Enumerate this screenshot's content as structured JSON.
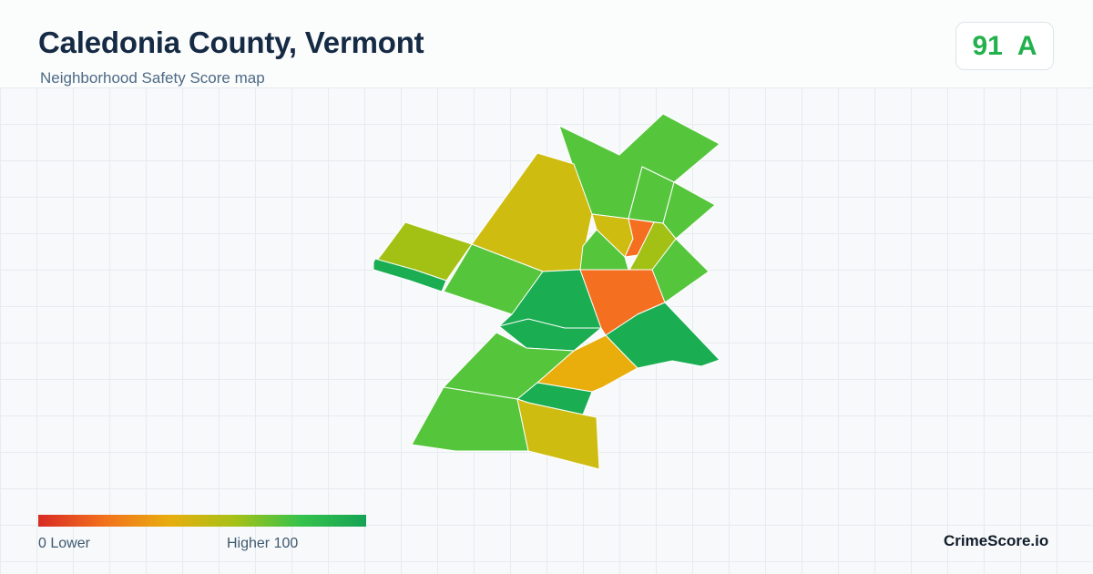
{
  "header": {
    "title": "Caledonia County, Vermont",
    "subtitle": "Neighborhood Safety Score map"
  },
  "score": {
    "value": "91",
    "grade": "A",
    "color": "#22b14c"
  },
  "legend": {
    "low_label": "0  Lower",
    "high_label": "Higher  100",
    "scale_min": 0,
    "scale_max": 100,
    "colors": [
      "#d82a24",
      "#f2711d",
      "#e8ad0f",
      "#a6c117",
      "#35c24b",
      "#15a356"
    ]
  },
  "brand": "CrimeScore.io",
  "map": {
    "regions": [
      {
        "name": "north-east-town",
        "fill": "#55c63c"
      },
      {
        "name": "north-west-town",
        "fill": "#cfbc11"
      },
      {
        "name": "west-town",
        "fill": "#a3c114"
      },
      {
        "name": "west-strip",
        "fill": "#1aad52"
      },
      {
        "name": "east-town-1",
        "fill": "#55c63c"
      },
      {
        "name": "east-town-2",
        "fill": "#55c63c"
      },
      {
        "name": "east-town-3",
        "fill": "#55c63c"
      },
      {
        "name": "central-small-1",
        "fill": "#cfbc11"
      },
      {
        "name": "central-small-2",
        "fill": "#55c63c"
      },
      {
        "name": "central-orange-north",
        "fill": "#f47020"
      },
      {
        "name": "central-yellowgreen",
        "fill": "#a3c114"
      },
      {
        "name": "mid-west-town",
        "fill": "#55c63c"
      },
      {
        "name": "central-west-town",
        "fill": "#1aad52"
      },
      {
        "name": "central-orange",
        "fill": "#f47020"
      },
      {
        "name": "south-central-town",
        "fill": "#1aad52"
      },
      {
        "name": "south-east-town",
        "fill": "#1aad52"
      },
      {
        "name": "south-west-town",
        "fill": "#55c63c"
      },
      {
        "name": "south-amber-town",
        "fill": "#e9ae0c"
      },
      {
        "name": "south-strip-town",
        "fill": "#1aad52"
      },
      {
        "name": "far-south-west-town",
        "fill": "#55c63c"
      },
      {
        "name": "far-south-town",
        "fill": "#cfbc11"
      }
    ]
  }
}
